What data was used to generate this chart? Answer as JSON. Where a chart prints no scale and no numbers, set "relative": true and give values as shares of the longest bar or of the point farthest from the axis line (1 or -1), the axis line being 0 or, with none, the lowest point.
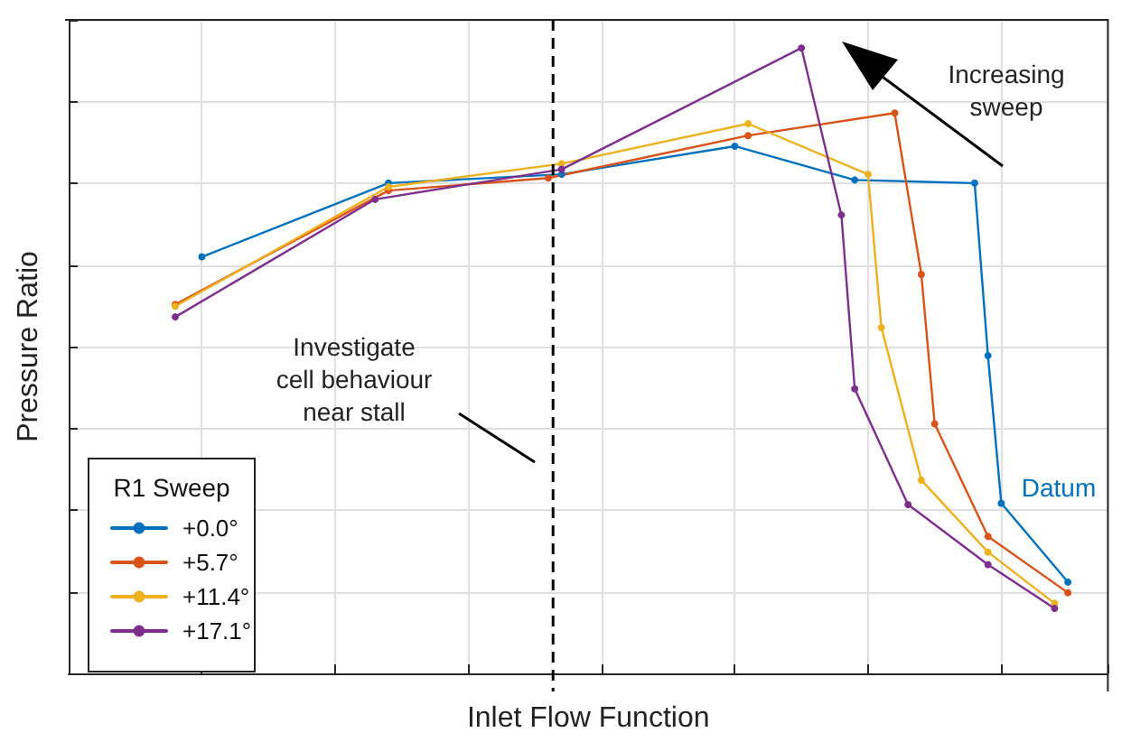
{
  "chart_data": {
    "type": "line",
    "relative": true,
    "xlabel": "Inlet Flow Function",
    "ylabel": "Pressure Ratio",
    "legend_title": "R1 Sweep",
    "legend": "bottom left",
    "grid": true,
    "marker": "circle",
    "line_style": "solid",
    "categories": [
      null,
      null,
      null,
      null,
      null,
      null,
      null,
      null,
      null,
      null,
      null,
      null,
      null,
      null,
      null,
      null,
      null,
      null,
      null,
      null,
      null,
      null,
      null,
      null,
      null,
      null,
      null,
      null,
      null,
      null,
      null,
      null,
      null,
      null,
      null,
      null,
      null,
      null,
      null,
      null,
      null,
      null,
      null,
      null,
      null,
      null,
      null,
      null,
      null,
      null,
      null,
      null,
      null,
      null,
      null,
      null,
      null,
      null,
      null,
      null,
      null,
      null,
      null,
      null,
      null,
      null,
      null,
      null,
      null,
      null,
      null,
      null,
      null,
      null,
      null,
      null,
      null,
      null,
      null
    ],
    "series": [
      {
        "name": "+0.0°",
        "color": "#0072bd",
        "values": [
          null,
          null,
          null,
          null,
          null,
          null,
          null,
          null,
          null,
          null,
          0.666,
          null,
          null,
          null,
          null,
          null,
          null,
          null,
          null,
          null,
          null,
          null,
          null,
          null,
          0.784,
          null,
          null,
          null,
          null,
          null,
          null,
          null,
          null,
          null,
          null,
          null,
          null,
          0.798,
          null,
          null,
          null,
          null,
          null,
          null,
          null,
          null,
          null,
          null,
          null,
          null,
          0.843,
          null,
          null,
          null,
          null,
          null,
          null,
          null,
          null,
          0.789,
          null,
          null,
          null,
          null,
          null,
          null,
          null,
          null,
          0.784,
          0.508,
          0.272,
          null,
          null,
          null,
          null,
          0.146,
          null,
          null,
          null
        ]
      },
      {
        "name": "+5.7°",
        "color": "#d95319",
        "values": [
          null,
          null,
          null,
          null,
          null,
          null,
          null,
          null,
          0.59,
          null,
          null,
          null,
          null,
          null,
          null,
          null,
          null,
          null,
          null,
          null,
          null,
          null,
          null,
          null,
          0.772,
          null,
          null,
          null,
          null,
          null,
          null,
          null,
          null,
          null,
          null,
          null,
          0.792,
          null,
          null,
          null,
          null,
          null,
          null,
          null,
          null,
          null,
          null,
          null,
          null,
          null,
          null,
          0.86,
          null,
          null,
          null,
          null,
          null,
          null,
          null,
          null,
          null,
          null,
          0.896,
          null,
          0.638,
          0.399,
          null,
          null,
          null,
          0.219,
          null,
          null,
          null,
          null,
          null,
          0.129,
          null,
          null,
          null
        ]
      },
      {
        "name": "+11.4°",
        "color": "#edb120",
        "values": [
          null,
          null,
          null,
          null,
          null,
          null,
          null,
          null,
          0.587,
          null,
          null,
          null,
          null,
          null,
          null,
          null,
          null,
          null,
          null,
          null,
          null,
          null,
          null,
          null,
          0.778,
          null,
          null,
          null,
          null,
          null,
          null,
          null,
          null,
          null,
          null,
          null,
          null,
          0.815,
          null,
          null,
          null,
          null,
          null,
          null,
          null,
          null,
          null,
          null,
          null,
          null,
          null,
          0.879,
          null,
          null,
          null,
          null,
          null,
          null,
          null,
          null,
          0.798,
          0.553,
          null,
          null,
          0.309,
          null,
          null,
          null,
          null,
          0.194,
          null,
          null,
          null,
          null,
          0.112,
          null,
          null,
          null,
          null
        ]
      },
      {
        "name": "+17.1°",
        "color": "#7e2f8e",
        "values": [
          null,
          null,
          null,
          null,
          null,
          null,
          null,
          null,
          0.57,
          null,
          null,
          null,
          null,
          null,
          null,
          null,
          null,
          null,
          null,
          null,
          null,
          null,
          null,
          0.758,
          null,
          null,
          null,
          null,
          null,
          null,
          null,
          null,
          null,
          null,
          null,
          null,
          null,
          0.806,
          null,
          null,
          null,
          null,
          null,
          null,
          null,
          null,
          null,
          null,
          null,
          null,
          null,
          null,
          null,
          null,
          null,
          1,
          null,
          null,
          0.733,
          0.455,
          null,
          null,
          null,
          0.27,
          null,
          null,
          null,
          null,
          null,
          0.174,
          null,
          null,
          null,
          null,
          0.104,
          null,
          null,
          null,
          null
        ]
      }
    ],
    "annotations": [
      "Investigate\ncell behaviour\nnear stall",
      "Increasing\nsweep",
      "Datum"
    ]
  }
}
